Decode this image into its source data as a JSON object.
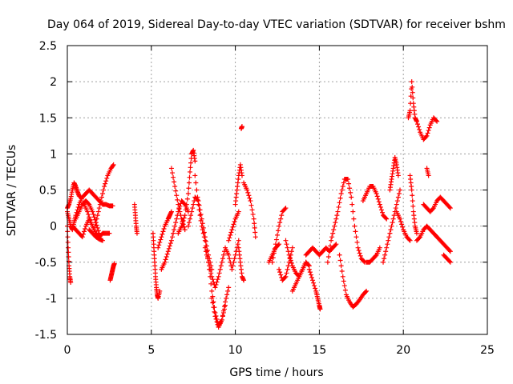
{
  "chart_data": {
    "type": "scatter",
    "title": "Day 064 of 2019, Sidereal Day-to-day VTEC variation (SDTVAR) for receiver bshm",
    "xlabel": "GPS time / hours",
    "ylabel": "SDTVAR / TECUs",
    "xlim": [
      0,
      25
    ],
    "ylim": [
      -1.5,
      2.5
    ],
    "x_ticks": [
      0,
      5,
      10,
      15,
      20,
      25
    ],
    "x_tick_labels": [
      "0",
      "5",
      "10",
      "15",
      "20",
      "25"
    ],
    "y_ticks": [
      -1.5,
      -1,
      -0.5,
      0,
      0.5,
      1,
      1.5,
      2,
      2.5
    ],
    "y_tick_labels": [
      "-1.5",
      "-1",
      "-0.5",
      "0",
      "0.5",
      "1",
      "1.5",
      "2",
      "2.5"
    ],
    "grid": true,
    "marker": "+",
    "marker_color": "#ff0000",
    "tracks": [
      {
        "name": "track-01",
        "x": [
          0.0,
          0.1,
          0.2,
          0.3,
          0.4,
          0.5,
          0.6,
          0.7,
          0.8
        ],
        "y": [
          0.25,
          0.3,
          0.38,
          0.5,
          0.6,
          0.55,
          0.48,
          0.42,
          0.4
        ]
      },
      {
        "name": "track-02",
        "x": [
          0.0,
          0.1,
          0.2,
          0.3,
          0.4,
          0.5,
          0.7,
          0.9,
          1.1,
          1.3,
          1.5,
          1.7,
          1.9,
          2.1,
          2.3,
          2.5,
          2.7
        ],
        "y": [
          0.2,
          0.1,
          0.0,
          -0.05,
          0.05,
          0.15,
          0.3,
          0.4,
          0.45,
          0.5,
          0.45,
          0.4,
          0.35,
          0.3,
          0.3,
          0.28,
          0.28
        ]
      },
      {
        "name": "track-03",
        "x": [
          0.0,
          0.05,
          0.1,
          0.15,
          0.2
        ],
        "y": [
          0.0,
          -0.3,
          -0.55,
          -0.7,
          -0.78
        ]
      },
      {
        "name": "track-04",
        "x": [
          0.3,
          0.5,
          0.7,
          0.9,
          1.1,
          1.3,
          1.5,
          1.7,
          1.9,
          2.1,
          2.3,
          2.5
        ],
        "y": [
          0.0,
          -0.05,
          -0.1,
          -0.15,
          0.0,
          0.1,
          0.0,
          -0.1,
          -0.15,
          -0.1,
          -0.1,
          -0.1
        ]
      },
      {
        "name": "track-05",
        "x": [
          1.0,
          1.2,
          1.4,
          1.6,
          1.8,
          2.0,
          2.2,
          2.4,
          2.6,
          2.75
        ],
        "y": [
          0.3,
          0.2,
          0.05,
          -0.05,
          0.15,
          0.35,
          0.55,
          0.7,
          0.8,
          0.85
        ]
      },
      {
        "name": "track-06",
        "x": [
          0.5,
          0.7,
          0.9,
          1.1,
          1.3,
          1.5,
          1.7,
          1.9
        ],
        "y": [
          0.1,
          0.2,
          0.3,
          0.35,
          0.3,
          0.2,
          0.05,
          -0.1
        ]
      },
      {
        "name": "track-07",
        "x": [
          1.3,
          1.5,
          1.7,
          1.9,
          2.1
        ],
        "y": [
          -0.05,
          -0.1,
          -0.15,
          -0.18,
          -0.2
        ]
      },
      {
        "name": "track-08",
        "x": [
          2.55,
          2.6,
          2.65,
          2.7,
          2.75,
          2.8
        ],
        "y": [
          -0.75,
          -0.7,
          -0.65,
          -0.6,
          -0.55,
          -0.52
        ]
      },
      {
        "name": "track-09",
        "x": [
          4.0,
          4.05,
          4.1,
          4.15
        ],
        "y": [
          0.3,
          0.15,
          0.0,
          -0.1
        ]
      },
      {
        "name": "track-10",
        "x": [
          5.1,
          5.15,
          5.2,
          5.25,
          5.3,
          5.35,
          5.4,
          5.5
        ],
        "y": [
          -0.1,
          -0.3,
          -0.5,
          -0.7,
          -0.85,
          -0.95,
          -1.0,
          -0.9
        ]
      },
      {
        "name": "track-11",
        "x": [
          5.4,
          5.6,
          5.8,
          6.0,
          6.1,
          6.2
        ],
        "y": [
          -0.3,
          -0.15,
          0.0,
          0.1,
          0.15,
          0.2
        ]
      },
      {
        "name": "track-12",
        "x": [
          5.6,
          5.8,
          6.0,
          6.2,
          6.4,
          6.6,
          6.8,
          7.0,
          7.2
        ],
        "y": [
          -0.6,
          -0.5,
          -0.35,
          -0.2,
          0.0,
          0.2,
          0.35,
          0.3,
          0.2
        ]
      },
      {
        "name": "track-13",
        "x": [
          6.2,
          6.4,
          6.6,
          6.8,
          7.0
        ],
        "y": [
          0.8,
          0.55,
          0.3,
          0.1,
          -0.05
        ]
      },
      {
        "name": "track-14",
        "x": [
          6.6,
          6.8,
          7.0,
          7.2,
          7.3,
          7.4,
          7.5,
          7.6
        ],
        "y": [
          -0.1,
          0.0,
          0.15,
          0.45,
          0.75,
          1.0,
          1.05,
          0.9
        ]
      },
      {
        "name": "track-15",
        "x": [
          7.6,
          7.8,
          8.0,
          8.2,
          8.4,
          8.6,
          8.8,
          9.0,
          9.2,
          9.4
        ],
        "y": [
          0.7,
          0.3,
          0.0,
          -0.2,
          -0.5,
          -0.9,
          -1.2,
          -1.38,
          -1.3,
          -1.1
        ]
      },
      {
        "name": "track-16",
        "x": [
          7.2,
          7.4,
          7.6,
          7.8,
          8.0,
          8.2,
          8.4,
          8.6
        ],
        "y": [
          0.0,
          0.2,
          0.4,
          0.35,
          0.1,
          -0.15,
          -0.4,
          -0.6
        ]
      },
      {
        "name": "track-17",
        "x": [
          8.2,
          8.4,
          8.6,
          8.8,
          9.0,
          9.2,
          9.4,
          9.6,
          9.8,
          10.0,
          10.2
        ],
        "y": [
          -0.3,
          -0.5,
          -0.7,
          -0.85,
          -0.7,
          -0.5,
          -0.3,
          -0.4,
          -0.6,
          -0.4,
          -0.2
        ]
      },
      {
        "name": "track-18",
        "x": [
          8.6,
          8.8,
          9.0,
          9.2,
          9.4,
          9.6
        ],
        "y": [
          -1.0,
          -1.25,
          -1.4,
          -1.3,
          -1.05,
          -0.85
        ]
      },
      {
        "name": "track-19",
        "x": [
          9.6,
          9.8,
          10.0,
          10.2
        ],
        "y": [
          -0.2,
          -0.05,
          0.1,
          0.2
        ]
      },
      {
        "name": "track-20",
        "x": [
          10.0,
          10.1,
          10.2,
          10.3,
          10.4
        ],
        "y": [
          0.3,
          0.5,
          0.7,
          0.85,
          0.7
        ]
      },
      {
        "name": "track-21",
        "x": [
          10.35,
          10.4
        ],
        "y": [
          1.35,
          1.38
        ]
      },
      {
        "name": "track-22",
        "x": [
          10.2,
          10.3,
          10.4,
          10.5
        ],
        "y": [
          -0.3,
          -0.5,
          -0.7,
          -0.75
        ]
      },
      {
        "name": "track-23",
        "x": [
          10.5,
          10.7,
          10.9,
          11.1,
          11.2
        ],
        "y": [
          0.6,
          0.5,
          0.35,
          0.1,
          -0.15
        ]
      },
      {
        "name": "track-24",
        "x": [
          12.0,
          12.2,
          12.4,
          12.6
        ],
        "y": [
          -0.5,
          -0.4,
          -0.3,
          -0.25
        ]
      },
      {
        "name": "track-25",
        "x": [
          12.2,
          12.4,
          12.6,
          12.8,
          13.0
        ],
        "y": [
          -0.5,
          -0.25,
          0.0,
          0.2,
          0.25
        ]
      },
      {
        "name": "track-26",
        "x": [
          12.6,
          12.8,
          13.0,
          13.2,
          13.4
        ],
        "y": [
          -0.6,
          -0.75,
          -0.7,
          -0.5,
          -0.3
        ]
      },
      {
        "name": "track-27",
        "x": [
          13.0,
          13.2,
          13.4,
          13.6,
          13.8,
          14.0,
          14.2,
          14.4
        ],
        "y": [
          -0.2,
          -0.4,
          -0.55,
          -0.65,
          -0.7,
          -0.6,
          -0.5,
          -0.55
        ]
      },
      {
        "name": "track-28",
        "x": [
          13.4,
          13.6,
          13.8,
          14.0,
          14.2
        ],
        "y": [
          -0.9,
          -0.8,
          -0.7,
          -0.6,
          -0.5
        ]
      },
      {
        "name": "track-29",
        "x": [
          14.4,
          14.6,
          14.8,
          14.9,
          15.0,
          15.05
        ],
        "y": [
          -0.6,
          -0.75,
          -0.9,
          -1.0,
          -1.1,
          -1.15
        ]
      },
      {
        "name": "track-30",
        "x": [
          14.2,
          14.4,
          14.6,
          14.8,
          15.0,
          15.2,
          15.4,
          15.6,
          15.8,
          16.0
        ],
        "y": [
          -0.4,
          -0.35,
          -0.3,
          -0.35,
          -0.4,
          -0.35,
          -0.3,
          -0.35,
          -0.3,
          -0.25
        ]
      },
      {
        "name": "track-31",
        "x": [
          15.5,
          15.7,
          15.9,
          16.1,
          16.3,
          16.5,
          16.7,
          16.9,
          17.1,
          17.3,
          17.5,
          17.7
        ],
        "y": [
          -0.5,
          -0.2,
          0.0,
          0.2,
          0.45,
          0.65,
          0.65,
          0.4,
          0.0,
          -0.3,
          -0.45,
          -0.5
        ]
      },
      {
        "name": "track-32",
        "x": [
          16.2,
          16.4,
          16.6,
          16.8,
          17.0,
          17.2,
          17.4,
          17.6,
          17.8
        ],
        "y": [
          -0.4,
          -0.7,
          -0.95,
          -1.05,
          -1.12,
          -1.08,
          -1.02,
          -0.95,
          -0.9
        ]
      },
      {
        "name": "track-33",
        "x": [
          17.6,
          17.8,
          18.0,
          18.2,
          18.4,
          18.6,
          18.8,
          19.0
        ],
        "y": [
          0.35,
          0.45,
          0.55,
          0.55,
          0.45,
          0.3,
          0.15,
          0.1
        ]
      },
      {
        "name": "track-34",
        "x": [
          17.8,
          18.0,
          18.2,
          18.4,
          18.6
        ],
        "y": [
          -0.5,
          -0.5,
          -0.45,
          -0.4,
          -0.3
        ]
      },
      {
        "name": "track-35",
        "x": [
          18.8,
          19.0,
          19.2,
          19.4,
          19.6,
          19.8
        ],
        "y": [
          -0.5,
          -0.3,
          -0.1,
          0.1,
          0.3,
          0.5
        ]
      },
      {
        "name": "track-36",
        "x": [
          19.2,
          19.3,
          19.4,
          19.5,
          19.6,
          19.7
        ],
        "y": [
          0.5,
          0.65,
          0.8,
          0.95,
          0.85,
          0.7
        ]
      },
      {
        "name": "track-37",
        "x": [
          19.6,
          19.8,
          20.0,
          20.2,
          20.4
        ],
        "y": [
          0.2,
          0.1,
          -0.05,
          -0.15,
          -0.2
        ]
      },
      {
        "name": "track-38",
        "x": [
          20.3,
          20.4,
          20.5,
          20.6,
          20.7,
          20.8,
          21.0,
          21.2,
          21.4,
          21.6,
          21.8,
          22.0
        ],
        "y": [
          1.5,
          1.6,
          2.0,
          1.7,
          1.5,
          1.45,
          1.3,
          1.2,
          1.25,
          1.4,
          1.5,
          1.45
        ]
      },
      {
        "name": "track-39",
        "x": [
          20.4,
          20.5,
          20.6,
          20.7,
          20.8
        ],
        "y": [
          0.7,
          0.5,
          0.2,
          0.0,
          -0.1
        ]
      },
      {
        "name": "track-40",
        "x": [
          20.8,
          21.0,
          21.2,
          21.4,
          21.6,
          21.8,
          22.0,
          22.2,
          22.4,
          22.6,
          22.8
        ],
        "y": [
          -0.2,
          -0.15,
          -0.05,
          0.0,
          -0.05,
          -0.1,
          -0.15,
          -0.2,
          -0.25,
          -0.3,
          -0.35
        ]
      },
      {
        "name": "track-41",
        "x": [
          21.2,
          21.4,
          21.6,
          21.8,
          22.0,
          22.2,
          22.4,
          22.6,
          22.8
        ],
        "y": [
          0.3,
          0.25,
          0.2,
          0.25,
          0.35,
          0.4,
          0.35,
          0.3,
          0.25
        ]
      },
      {
        "name": "track-42",
        "x": [
          21.4,
          21.5
        ],
        "y": [
          0.8,
          0.7
        ]
      },
      {
        "name": "track-43",
        "x": [
          22.4,
          22.6,
          22.8
        ],
        "y": [
          -0.4,
          -0.45,
          -0.5
        ]
      }
    ]
  }
}
